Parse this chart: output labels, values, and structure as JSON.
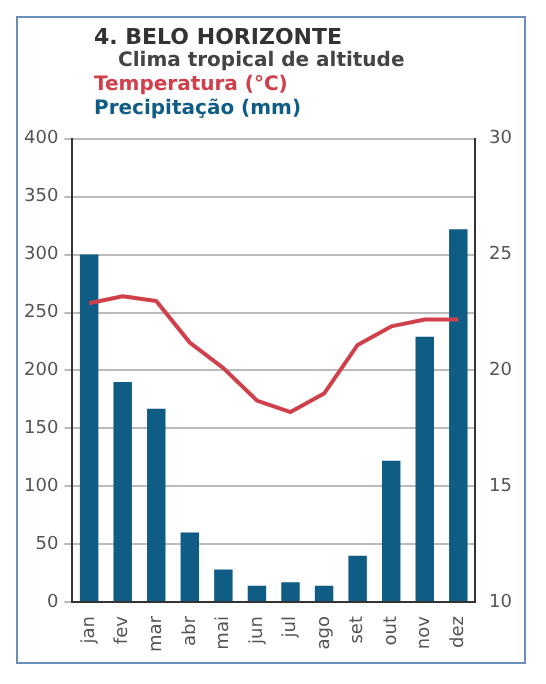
{
  "chart_data": {
    "type": "bar",
    "title": "4. BELO HORIZONTE",
    "subtitle": "Clima tropical de altitude",
    "categories": [
      "jan",
      "fev",
      "mar",
      "abr",
      "mai",
      "jun",
      "jul",
      "ago",
      "set",
      "out",
      "nov",
      "dez"
    ],
    "series": [
      {
        "name": "Temperatura (°C)",
        "type": "line",
        "axis": "y2",
        "color": "#d0404a",
        "values": [
          22.9,
          23.2,
          23.0,
          21.2,
          20.1,
          18.7,
          18.2,
          19.0,
          21.1,
          21.9,
          22.2,
          22.2
        ]
      },
      {
        "name": "Precipitação (mm)",
        "color": "#0f5c85",
        "values": [
          300,
          190,
          167,
          60,
          28,
          14,
          17,
          14,
          40,
          122,
          229,
          322
        ]
      }
    ],
    "ylim": [
      0,
      400
    ],
    "yticks": [
      0,
      50,
      100,
      150,
      200,
      250,
      300,
      350,
      400
    ],
    "y2lim": [
      10,
      30
    ],
    "y2ticks": [
      10,
      15,
      20,
      25,
      30
    ],
    "grid": "y",
    "legend": "top left",
    "marker": "none"
  }
}
